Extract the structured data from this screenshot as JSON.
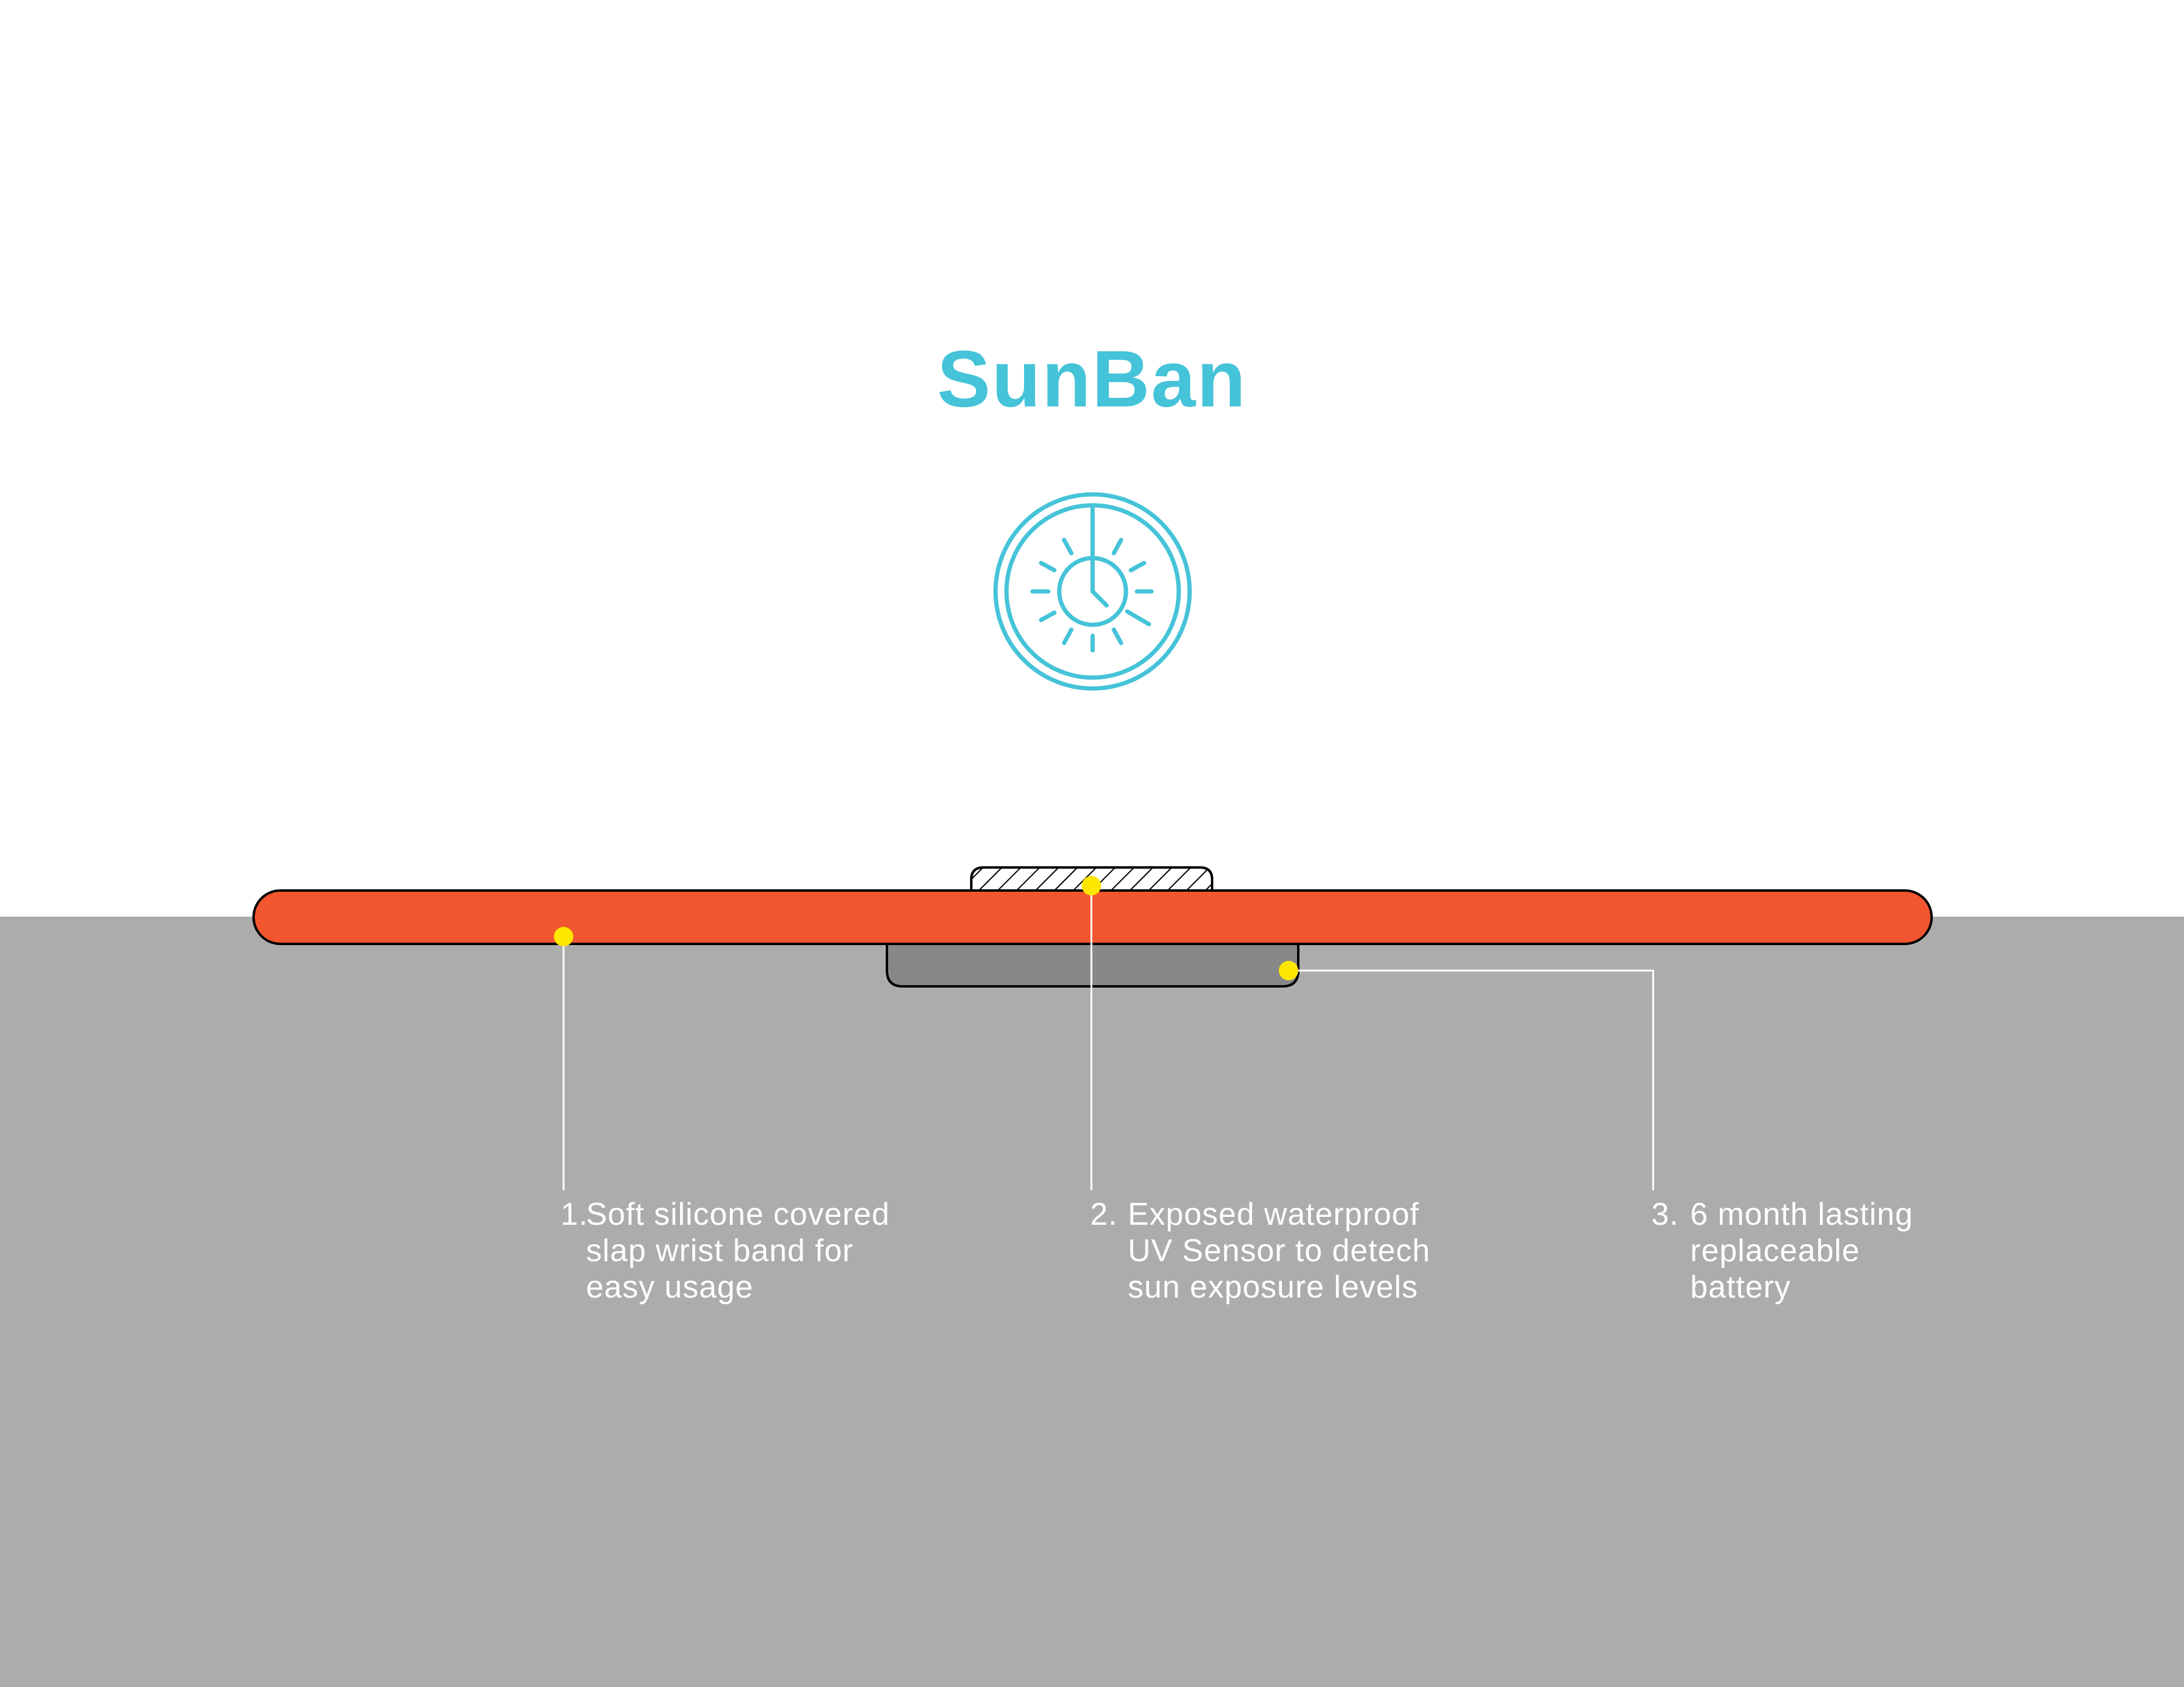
{
  "title": "SunBan",
  "colors": {
    "title": "#45c3d8",
    "band": "#f15630",
    "sensor_hatch": "#ffffff",
    "battery": "#888888",
    "ground": "#acacac",
    "marker": "#ffe600",
    "callout_text": "#ffffff"
  },
  "logo": {
    "icon": "sun-clock-icon"
  },
  "callouts": [
    {
      "number": "1.",
      "lines": [
        "Soft silicone covered",
        "slap wrist band for",
        "easy usage"
      ]
    },
    {
      "number": "2.",
      "lines": [
        "Exposed waterproof",
        "UV Sensor to detech",
        "sun exposure levels"
      ]
    },
    {
      "number": "3.",
      "lines": [
        "6 month lasting",
        "replaceable",
        "battery"
      ]
    }
  ]
}
